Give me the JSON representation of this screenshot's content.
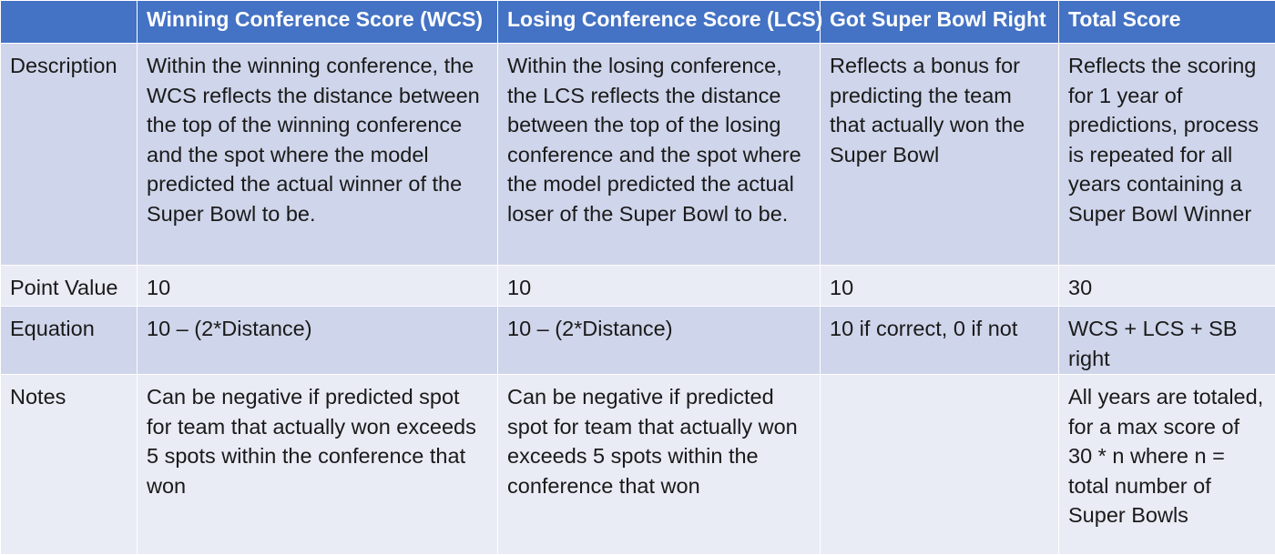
{
  "table": {
    "headers": [
      "",
      "Winning Conference Score (WCS)",
      "Losing Conference Score (LCS)",
      "Got Super Bowl Right",
      "Total Score"
    ],
    "rows": [
      {
        "label": "Description",
        "cells": [
          "Within the winning conference, the WCS reflects the distance between the top of the winning conference and  the spot where the model predicted the actual winner of the Super Bowl to be.",
          "Within the losing conference, the LCS reflects the distance between the top of the losing conference and the spot where the model predicted the actual loser of the Super Bowl to be.",
          "Reflects a bonus for predicting the team that actually won the Super Bowl",
          "Reflects the scoring for 1 year of predictions, process is repeated for all years containing a Super Bowl Winner"
        ]
      },
      {
        "label": "Point Value",
        "cells": [
          "10",
          "10",
          "10",
          "30"
        ]
      },
      {
        "label": "Equation",
        "cells": [
          "10 – (2*Distance)",
          "10 – (2*Distance)",
          "10 if correct, 0 if not",
          "WCS + LCS + SB right"
        ]
      },
      {
        "label": "Notes",
        "cells": [
          "Can be negative if predicted spot for team that actually won exceeds 5 spots within the conference that won",
          "Can be negative if predicted spot for team that actually won exceeds 5 spots within the conference that won",
          "",
          "All years are totaled,  for a max score of 30 * n where  n = total number of Super Bowls"
        ]
      }
    ]
  },
  "colors": {
    "header_bg": "#4472c4",
    "header_text": "#ffffff",
    "band_dark": "#cfd5ea",
    "band_light": "#e9ebf5",
    "grid_line": "#ffffff"
  }
}
